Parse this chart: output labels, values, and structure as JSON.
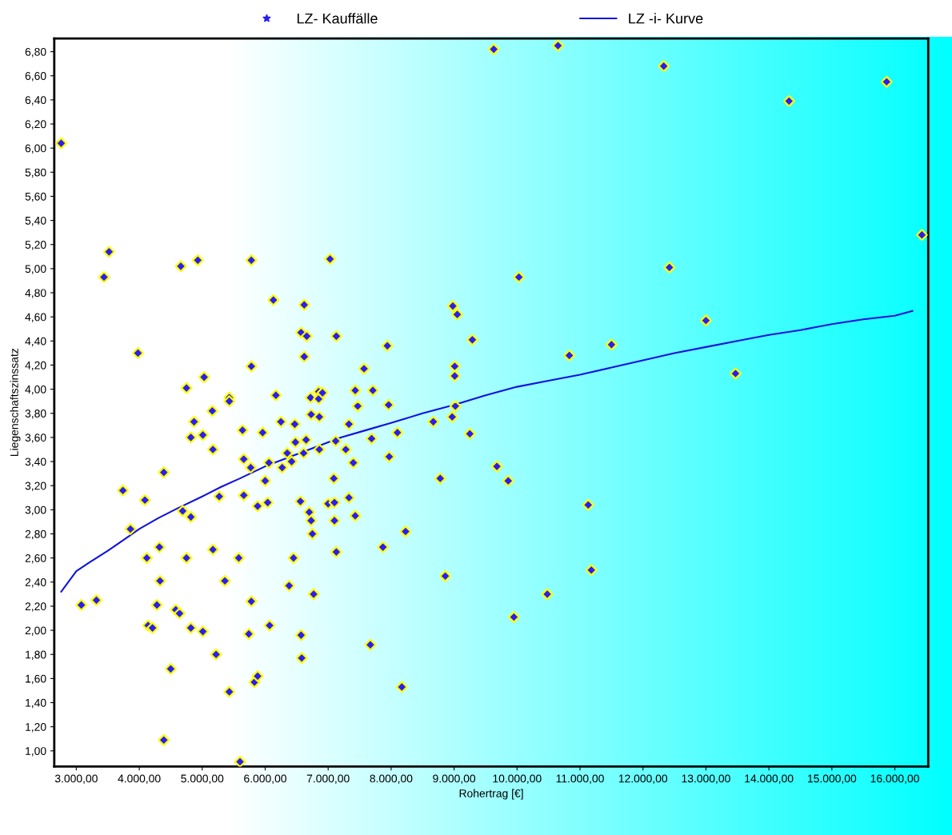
{
  "chart_data": {
    "type": "scatter",
    "xlabel": "Rohertrag [€]",
    "ylabel": "Liegenschaftszinssatz",
    "legend": "top",
    "grid": false,
    "xlim": [
      2650,
      16530
    ],
    "ylim": [
      0.87,
      6.91
    ],
    "xticks": [
      {
        "value": 3000,
        "label": "3.000,00"
      },
      {
        "value": 4000,
        "label": "4.000,00"
      },
      {
        "value": 5000,
        "label": "5.000,00"
      },
      {
        "value": 6000,
        "label": "6.000,00"
      },
      {
        "value": 7000,
        "label": "7.000,00"
      },
      {
        "value": 8000,
        "label": "8.000,00"
      },
      {
        "value": 9000,
        "label": "9.000,00"
      },
      {
        "value": 10000,
        "label": "10.000,00"
      },
      {
        "value": 11000,
        "label": "11.000,00"
      },
      {
        "value": 12000,
        "label": "12.000,00"
      },
      {
        "value": 13000,
        "label": "13.000,00"
      },
      {
        "value": 14000,
        "label": "14.000,00"
      },
      {
        "value": 15000,
        "label": "15.000,00"
      },
      {
        "value": 16000,
        "label": "16.000,00"
      }
    ],
    "yticks": [
      {
        "value": 1.0,
        "label": "1,00"
      },
      {
        "value": 1.2,
        "label": "1,20"
      },
      {
        "value": 1.4,
        "label": "1,40"
      },
      {
        "value": 1.6,
        "label": "1,60"
      },
      {
        "value": 1.8,
        "label": "1,80"
      },
      {
        "value": 2.0,
        "label": "2,00"
      },
      {
        "value": 2.2,
        "label": "2,20"
      },
      {
        "value": 2.4,
        "label": "2,40"
      },
      {
        "value": 2.6,
        "label": "2,60"
      },
      {
        "value": 2.8,
        "label": "2,80"
      },
      {
        "value": 3.0,
        "label": "3,00"
      },
      {
        "value": 3.2,
        "label": "3,20"
      },
      {
        "value": 3.4,
        "label": "3,40"
      },
      {
        "value": 3.6,
        "label": "3,60"
      },
      {
        "value": 3.8,
        "label": "3,80"
      },
      {
        "value": 4.0,
        "label": "4,00"
      },
      {
        "value": 4.2,
        "label": "4,20"
      },
      {
        "value": 4.4,
        "label": "4,40"
      },
      {
        "value": 4.6,
        "label": "4,60"
      },
      {
        "value": 4.8,
        "label": "4,80"
      },
      {
        "value": 5.0,
        "label": "5,00"
      },
      {
        "value": 5.2,
        "label": "5,20"
      },
      {
        "value": 5.4,
        "label": "5,40"
      },
      {
        "value": 5.6,
        "label": "5,60"
      },
      {
        "value": 5.8,
        "label": "5,80"
      },
      {
        "value": 6.0,
        "label": "6,00"
      },
      {
        "value": 6.2,
        "label": "6,20"
      },
      {
        "value": 6.4,
        "label": "6,40"
      },
      {
        "value": 6.6,
        "label": "6,60"
      },
      {
        "value": 6.8,
        "label": "6,80"
      }
    ],
    "series": [
      {
        "name": "LZ- Kauffälle",
        "marker": "diamond",
        "color": "#2a1ef2",
        "x": [
          2760,
          3080,
          3320,
          3440,
          3520,
          3740,
          3860,
          3980,
          4090,
          4120,
          4140,
          4210,
          4280,
          4320,
          4330,
          4390,
          4390,
          4500,
          4580,
          4640,
          4660,
          4690,
          4750,
          4750,
          4820,
          4820,
          4820,
          4870,
          4930,
          5010,
          5010,
          5030,
          5160,
          5170,
          5170,
          5220,
          5270,
          5360,
          5430,
          5430,
          5430,
          5580,
          5600,
          5640,
          5660,
          5660,
          5780,
          5770,
          5740,
          5780,
          5780,
          5830,
          5880,
          5880,
          5960,
          6000,
          6040,
          6060,
          6070,
          6130,
          6170,
          6250,
          6270,
          6350,
          6380,
          6420,
          6450,
          6470,
          6480,
          6560,
          6570,
          6570,
          6580,
          6610,
          6620,
          6620,
          6650,
          6660,
          6700,
          6720,
          6730,
          6730,
          6750,
          6770,
          6850,
          6850,
          6860,
          6860,
          6910,
          7000,
          7030,
          7090,
          7100,
          7100,
          7120,
          7130,
          7130,
          7280,
          7330,
          7330,
          7400,
          7430,
          7430,
          7470,
          7570,
          7670,
          7690,
          7710,
          7870,
          7940,
          7960,
          7970,
          8100,
          8170,
          8230,
          8670,
          8780,
          8860,
          8970,
          8980,
          9010,
          9010,
          9020,
          9050,
          9250,
          9290,
          9630,
          9680,
          9860,
          9950,
          10030,
          10480,
          10650,
          10830,
          11130,
          11180,
          11500,
          12330,
          12420,
          13000,
          13470,
          14320,
          15870,
          16430
        ],
        "values": [
          6.04,
          2.21,
          2.25,
          4.93,
          5.14,
          3.16,
          2.84,
          4.3,
          3.08,
          2.6,
          2.04,
          2.02,
          2.21,
          2.69,
          2.41,
          3.31,
          1.09,
          1.68,
          2.17,
          2.14,
          5.02,
          2.99,
          4.01,
          2.6,
          3.6,
          2.94,
          2.02,
          3.73,
          5.07,
          3.62,
          1.99,
          4.1,
          3.82,
          3.5,
          2.67,
          1.8,
          3.11,
          2.41,
          3.93,
          3.9,
          1.49,
          2.6,
          0.91,
          3.66,
          3.42,
          3.12,
          2.24,
          3.35,
          1.97,
          5.07,
          4.19,
          1.57,
          1.62,
          3.03,
          3.64,
          3.24,
          3.06,
          3.39,
          2.04,
          4.74,
          3.95,
          3.73,
          3.35,
          3.47,
          2.37,
          3.4,
          2.6,
          3.71,
          3.56,
          3.07,
          4.47,
          1.96,
          1.77,
          3.47,
          4.7,
          4.27,
          3.58,
          4.44,
          2.98,
          3.93,
          3.79,
          2.91,
          2.8,
          2.3,
          3.98,
          3.92,
          3.77,
          3.5,
          3.97,
          3.05,
          5.08,
          3.26,
          3.06,
          2.91,
          3.57,
          4.44,
          2.65,
          3.5,
          3.71,
          3.1,
          3.39,
          3.99,
          2.95,
          3.86,
          4.17,
          1.88,
          3.59,
          3.99,
          2.69,
          4.36,
          3.87,
          3.44,
          3.64,
          1.53,
          2.82,
          3.73,
          3.26,
          2.45,
          3.77,
          4.69,
          4.19,
          4.11,
          3.86,
          4.62,
          3.63,
          4.41,
          6.82,
          3.36,
          3.24,
          2.11,
          4.93,
          2.3,
          6.85,
          4.28,
          3.04,
          2.5,
          4.37,
          6.68,
          5.01,
          4.57,
          4.13,
          6.39,
          6.55,
          5.28
        ]
      },
      {
        "name": "LZ -i- Kurve",
        "type": "line",
        "marker": "none",
        "line_style": "solid",
        "color": "#1010e0",
        "x": [
          2760,
          3000,
          3200,
          3500,
          3750,
          4000,
          4300,
          4600,
          5000,
          5300,
          5600,
          6000,
          6400,
          6800,
          7200,
          7600,
          8000,
          8500,
          9000,
          9500,
          10000,
          10500,
          11000,
          11500,
          12000,
          12500,
          13000,
          13500,
          14000,
          14500,
          15000,
          15500,
          16000,
          16280
        ],
        "values": [
          2.32,
          2.49,
          2.56,
          2.66,
          2.75,
          2.84,
          2.93,
          3.01,
          3.11,
          3.19,
          3.26,
          3.36,
          3.44,
          3.52,
          3.6,
          3.66,
          3.72,
          3.8,
          3.87,
          3.95,
          4.02,
          4.07,
          4.12,
          4.18,
          4.24,
          4.3,
          4.35,
          4.4,
          4.45,
          4.49,
          4.54,
          4.58,
          4.61,
          4.65
        ]
      }
    ]
  }
}
